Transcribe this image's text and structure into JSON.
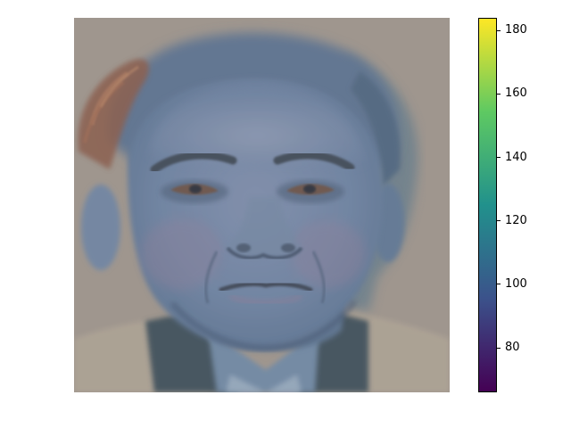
{
  "image": {
    "subject": "portrait-face",
    "colormap": "viridis"
  },
  "colorbar": {
    "min": 66,
    "max": 184,
    "ticks": [
      {
        "value": 180,
        "label": "180"
      },
      {
        "value": 160,
        "label": "160"
      },
      {
        "value": 140,
        "label": "140"
      },
      {
        "value": 120,
        "label": "120"
      },
      {
        "value": 100,
        "label": "100"
      },
      {
        "value": 80,
        "label": "80"
      }
    ],
    "colors": [
      "#440154",
      "#3b528b",
      "#21918c",
      "#5ec962",
      "#fde725"
    ]
  }
}
